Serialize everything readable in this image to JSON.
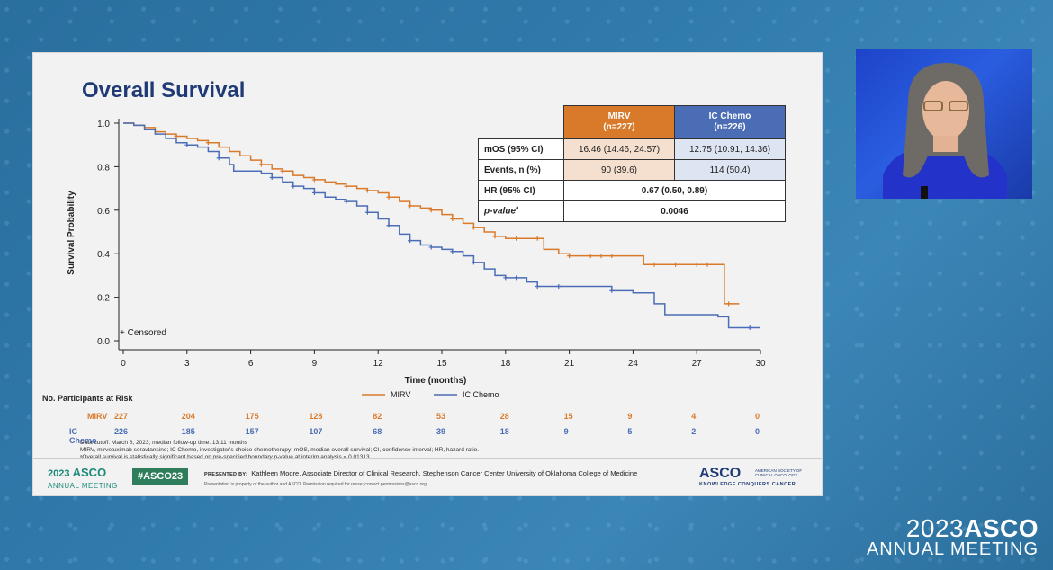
{
  "slide": {
    "title": "Overall Survival",
    "censored_label": "+ Censored",
    "stats_table": {
      "headers": [
        "MIRV\n(n=227)",
        "IC Chemo\n(n=226)"
      ],
      "mirv_header_line1": "MIRV",
      "mirv_header_line2": "(n=227)",
      "ic_header_line1": "IC Chemo",
      "ic_header_line2": "(n=226)",
      "rows": [
        {
          "label": "mOS (95% CI)",
          "mirv": "16.46 (14.46, 24.57)",
          "ic": "12.75 (10.91, 14.36)"
        },
        {
          "label": "Events, n (%)",
          "mirv": "90 (39.6)",
          "ic": "114 (50.4)"
        },
        {
          "label": "HR (95% CI)",
          "value": "0.67 (0.50, 0.89)"
        },
        {
          "label": "p-value",
          "label_sup": "a",
          "value": "0.0046"
        }
      ]
    },
    "risk_table": {
      "title": "No. Participants at Risk",
      "mirv_label": "MIRV",
      "ic_label": "IC Chemo",
      "mirv": [
        "227",
        "204",
        "175",
        "128",
        "82",
        "53",
        "28",
        "15",
        "9",
        "4",
        "0"
      ],
      "ic": [
        "226",
        "185",
        "157",
        "107",
        "68",
        "39",
        "18",
        "9",
        "5",
        "2",
        "0"
      ]
    },
    "footnotes": [
      "Data cutoff: March 6, 2023; median follow-up time: 13.11 months",
      "MIRV, mirvetuximab soravtansine; IC Chemo, investigator's choice chemotherapy; mOS, median overall survival; CI, confidence interval; HR, hazard ratio.",
      "ᵃOverall survival is statistically significant based on pre-specified boundary p-value at interim analysis = 0.01313"
    ],
    "footer": {
      "meeting_year": "2023",
      "meeting_org": "ASCO",
      "meeting_sub": "ANNUAL MEETING",
      "hashtag": "#ASCO23",
      "presented_by_label": "PRESENTED BY:",
      "presenter": "Kathleen Moore, Associate Director of Clinical Research, Stephenson Cancer Center University of Oklahoma College of Medicine",
      "permission": "Presentation is property of the author and ASCO. Permission required for reuse; contact permissions@asco.org.",
      "asco_logo": "ASCO",
      "asco_society": "AMERICAN SOCIETY OF CLINICAL ONCOLOGY",
      "asco_tagline": "KNOWLEDGE CONQUERS CANCER"
    }
  },
  "brand": {
    "year": "2023",
    "org": "ASCO",
    "sub": "ANNUAL MEETING"
  },
  "colors": {
    "mirv": "#d97a2b",
    "ic": "#4a6db5",
    "title": "#1f3a75"
  },
  "chart_data": {
    "type": "line",
    "title": "Overall Survival",
    "xlabel": "Time (months)",
    "ylabel": "Survival Probability",
    "xlim": [
      0,
      30
    ],
    "ylim": [
      0,
      1.0
    ],
    "xticks": [
      0,
      3,
      6,
      9,
      12,
      15,
      18,
      21,
      24,
      27,
      30
    ],
    "yticks": [
      0.0,
      0.2,
      0.4,
      0.6,
      0.8,
      1.0
    ],
    "ytick_labels": [
      "0.0",
      "0.2",
      "0.4",
      "0.6",
      "0.8",
      "1.0"
    ],
    "legend": [
      "MIRV",
      "IC Chemo"
    ],
    "legend_position": "bottom-center",
    "series": [
      {
        "name": "MIRV",
        "color": "#d97a2b",
        "x": [
          0,
          0.5,
          1,
          1.5,
          2,
          2.5,
          3,
          3.5,
          4,
          4.5,
          5,
          5.5,
          6,
          6.5,
          7,
          7.5,
          8,
          8.5,
          9,
          9.5,
          10,
          10.5,
          11,
          11.5,
          12,
          12.5,
          13,
          13.5,
          14,
          14.5,
          15,
          15.5,
          16,
          16.5,
          17,
          17.5,
          18,
          18.5,
          19,
          19.5,
          19.8,
          20.5,
          21,
          22,
          23,
          24,
          24.5,
          25,
          26,
          27,
          28,
          28.3,
          29
        ],
        "y": [
          1.0,
          0.99,
          0.98,
          0.96,
          0.95,
          0.94,
          0.93,
          0.92,
          0.91,
          0.89,
          0.87,
          0.85,
          0.83,
          0.81,
          0.79,
          0.78,
          0.76,
          0.75,
          0.74,
          0.73,
          0.72,
          0.71,
          0.7,
          0.69,
          0.68,
          0.66,
          0.64,
          0.62,
          0.61,
          0.6,
          0.58,
          0.56,
          0.54,
          0.52,
          0.5,
          0.48,
          0.47,
          0.47,
          0.47,
          0.47,
          0.42,
          0.4,
          0.39,
          0.39,
          0.39,
          0.39,
          0.35,
          0.35,
          0.35,
          0.35,
          0.35,
          0.17,
          0.17
        ],
        "censored_x": [
          2.5,
          4,
          6.5,
          7.5,
          9,
          10.5,
          11.5,
          12.5,
          13.5,
          14.5,
          15.5,
          16.5,
          17.5,
          18.5,
          19.5,
          21,
          22,
          22.5,
          23,
          25,
          26,
          27,
          27.5,
          28.5
        ]
      },
      {
        "name": "IC Chemo",
        "color": "#4a6db5",
        "x": [
          0,
          0.5,
          1,
          1.5,
          2,
          2.5,
          3,
          3.5,
          4,
          4.5,
          5,
          5.2,
          5.5,
          6,
          6.5,
          7,
          7.5,
          8,
          8.5,
          9,
          9.5,
          10,
          10.5,
          11,
          11.5,
          12,
          12.5,
          13,
          13.5,
          14,
          14.5,
          15,
          15.5,
          16,
          16.5,
          17,
          17.5,
          18,
          18.5,
          19,
          19.5,
          20,
          21,
          22,
          22.5,
          23,
          24,
          25,
          25.5,
          26,
          27,
          28,
          28.5,
          29,
          30
        ],
        "y": [
          1.0,
          0.99,
          0.97,
          0.95,
          0.93,
          0.91,
          0.9,
          0.89,
          0.87,
          0.84,
          0.81,
          0.78,
          0.78,
          0.78,
          0.77,
          0.75,
          0.73,
          0.71,
          0.7,
          0.68,
          0.66,
          0.65,
          0.64,
          0.62,
          0.59,
          0.56,
          0.53,
          0.49,
          0.46,
          0.44,
          0.43,
          0.42,
          0.41,
          0.39,
          0.36,
          0.33,
          0.3,
          0.29,
          0.29,
          0.27,
          0.25,
          0.25,
          0.25,
          0.25,
          0.25,
          0.23,
          0.22,
          0.17,
          0.12,
          0.12,
          0.12,
          0.11,
          0.06,
          0.06,
          0.06
        ],
        "censored_x": [
          3,
          4.5,
          7,
          8,
          9,
          10.5,
          11.5,
          12.5,
          13.5,
          14.5,
          15.5,
          16.5,
          18,
          18.5,
          19.5,
          20.5,
          23,
          29.5
        ]
      }
    ]
  }
}
